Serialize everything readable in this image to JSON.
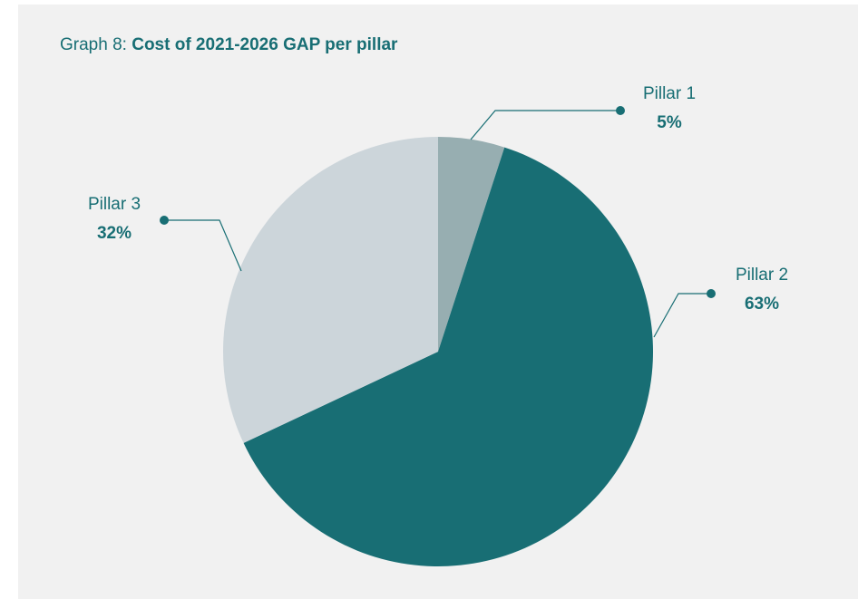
{
  "title": {
    "prefix": "Graph 8: ",
    "main": "Cost of 2021-2026 GAP per pillar"
  },
  "chart_data": {
    "type": "pie",
    "title": "Graph 8: Cost of 2021-2026 GAP per pillar",
    "slices": [
      {
        "label": "Pillar 1",
        "value": 5,
        "display": "5%",
        "color": "#97aeb1"
      },
      {
        "label": "Pillar 2",
        "value": 63,
        "display": "63%",
        "color": "#186e74"
      },
      {
        "label": "Pillar 3",
        "value": 32,
        "display": "32%",
        "color": "#ccd5da"
      }
    ],
    "start_angle": "12 o'clock",
    "direction": "clockwise",
    "label_color": "#186e74",
    "background": "#f1f1f1"
  }
}
